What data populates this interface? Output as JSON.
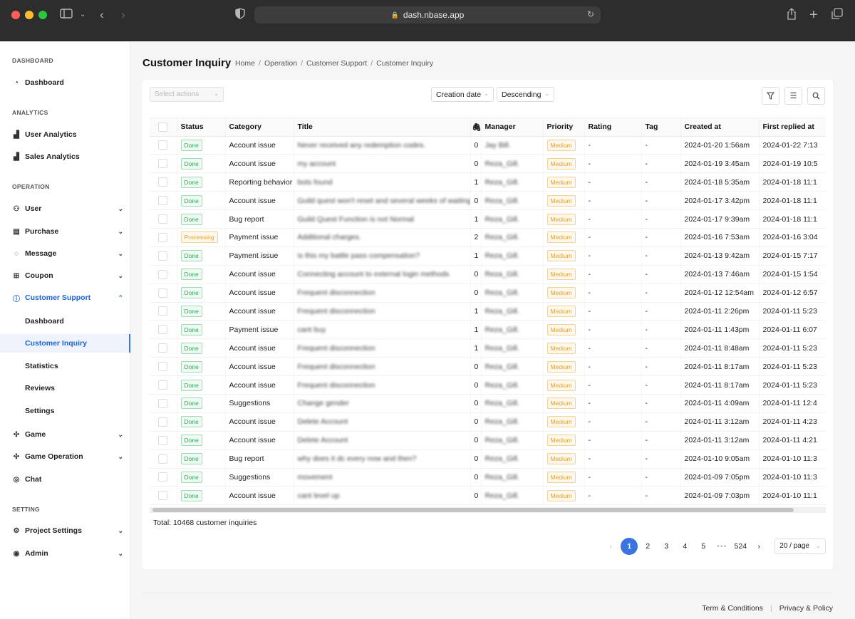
{
  "browser": {
    "url": "dash.nbase.app"
  },
  "sidebar": {
    "sections": [
      {
        "label": "DASHBOARD"
      },
      {
        "label": "ANALYTICS"
      },
      {
        "label": "OPERATION"
      },
      {
        "label": "SETTING"
      }
    ],
    "items": [
      {
        "label": "Dashboard",
        "icon": "dashboard-icon"
      },
      {
        "label": "User Analytics",
        "icon": "bar-chart-icon"
      },
      {
        "label": "Sales Analytics",
        "icon": "bar-chart-icon"
      },
      {
        "label": "User",
        "icon": "user-icon"
      },
      {
        "label": "Purchase",
        "icon": "purchase-icon"
      },
      {
        "label": "Message",
        "icon": "message-icon"
      },
      {
        "label": "Coupon",
        "icon": "gift-icon"
      },
      {
        "label": "Customer Support",
        "icon": "help-circle-icon"
      },
      {
        "label": "Dashboard"
      },
      {
        "label": "Customer Inquiry"
      },
      {
        "label": "Statistics"
      },
      {
        "label": "Reviews"
      },
      {
        "label": "Settings"
      },
      {
        "label": "Game",
        "icon": "game-icon"
      },
      {
        "label": "Game Operation",
        "icon": "game-icon"
      },
      {
        "label": "Chat",
        "icon": "chat-icon"
      },
      {
        "label": "Project Settings",
        "icon": "gear-icon"
      },
      {
        "label": "Admin",
        "icon": "eye-icon"
      }
    ]
  },
  "header": {
    "title": "Customer Inquiry",
    "breadcrumb": [
      "Home",
      "Operation",
      "Customer Support",
      "Customer Inquiry"
    ]
  },
  "toolbar": {
    "select_actions_placeholder": "Select actions",
    "sort_field": "Creation date",
    "sort_order": "Descending"
  },
  "table": {
    "columns": [
      "Status",
      "Category",
      "Title",
      "Manager",
      "Priority",
      "Rating",
      "Tag",
      "Created at",
      "First replied at"
    ],
    "rows": [
      {
        "status": "Done",
        "category": "Account issue",
        "title": "Never received any redemption codes.",
        "count": "0",
        "manager": "Jay Bill.",
        "priority": "Medium",
        "rating": "-",
        "tag": "-",
        "created": "2024-01-20 1:56am",
        "replied": "2024-01-22 7:13"
      },
      {
        "status": "Done",
        "category": "Account issue",
        "title": "my account",
        "count": "0",
        "manager": "Reza_Gill.",
        "priority": "Medium",
        "rating": "-",
        "tag": "-",
        "created": "2024-01-19 3:45am",
        "replied": "2024-01-19 10:5"
      },
      {
        "status": "Done",
        "category": "Reporting behavior",
        "title": "bots found",
        "count": "1",
        "manager": "Reza_Gill.",
        "priority": "Medium",
        "rating": "-",
        "tag": "-",
        "created": "2024-01-18 5:35am",
        "replied": "2024-01-18 11:1"
      },
      {
        "status": "Done",
        "category": "Account issue",
        "title": "Guild quest won't reset and several weeks of waiting",
        "count": "0",
        "manager": "Reza_Gill.",
        "priority": "Medium",
        "rating": "-",
        "tag": "-",
        "created": "2024-01-17 3:42pm",
        "replied": "2024-01-18 11:1"
      },
      {
        "status": "Done",
        "category": "Bug report",
        "title": "Guild Quest Function is not Normal",
        "count": "1",
        "manager": "Reza_Gill.",
        "priority": "Medium",
        "rating": "-",
        "tag": "-",
        "created": "2024-01-17 9:39am",
        "replied": "2024-01-18 11:1"
      },
      {
        "status": "Processing",
        "category": "Payment issue",
        "title": "Additional charges.",
        "count": "2",
        "manager": "Reza_Gill.",
        "priority": "Medium",
        "rating": "-",
        "tag": "-",
        "created": "2024-01-16 7:53am",
        "replied": "2024-01-16 3:04"
      },
      {
        "status": "Done",
        "category": "Payment issue",
        "title": "is this my battle pass compensation?",
        "count": "1",
        "manager": "Reza_Gill.",
        "priority": "Medium",
        "rating": "-",
        "tag": "-",
        "created": "2024-01-13 9:42am",
        "replied": "2024-01-15 7:17"
      },
      {
        "status": "Done",
        "category": "Account issue",
        "title": "Connecting account to external login methods",
        "count": "0",
        "manager": "Reza_Gill.",
        "priority": "Medium",
        "rating": "-",
        "tag": "-",
        "created": "2024-01-13 7:46am",
        "replied": "2024-01-15 1:54"
      },
      {
        "status": "Done",
        "category": "Account issue",
        "title": "Frequent disconnection",
        "count": "0",
        "manager": "Reza_Gill.",
        "priority": "Medium",
        "rating": "-",
        "tag": "-",
        "created": "2024-01-12 12:54am",
        "replied": "2024-01-12 6:57"
      },
      {
        "status": "Done",
        "category": "Account issue",
        "title": "Frequent disconnection",
        "count": "1",
        "manager": "Reza_Gill.",
        "priority": "Medium",
        "rating": "-",
        "tag": "-",
        "created": "2024-01-11 2:26pm",
        "replied": "2024-01-11 5:23"
      },
      {
        "status": "Done",
        "category": "Payment issue",
        "title": "cant buy",
        "count": "1",
        "manager": "Reza_Gill.",
        "priority": "Medium",
        "rating": "-",
        "tag": "-",
        "created": "2024-01-11 1:43pm",
        "replied": "2024-01-11 6:07"
      },
      {
        "status": "Done",
        "category": "Account issue",
        "title": "Frequent disconnection",
        "count": "1",
        "manager": "Reza_Gill.",
        "priority": "Medium",
        "rating": "-",
        "tag": "-",
        "created": "2024-01-11 8:48am",
        "replied": "2024-01-11 5:23"
      },
      {
        "status": "Done",
        "category": "Account issue",
        "title": "Frequent disconnection",
        "count": "0",
        "manager": "Reza_Gill.",
        "priority": "Medium",
        "rating": "-",
        "tag": "-",
        "created": "2024-01-11 8:17am",
        "replied": "2024-01-11 5:23"
      },
      {
        "status": "Done",
        "category": "Account issue",
        "title": "Frequent disconnection",
        "count": "0",
        "manager": "Reza_Gill.",
        "priority": "Medium",
        "rating": "-",
        "tag": "-",
        "created": "2024-01-11 8:17am",
        "replied": "2024-01-11 5:23"
      },
      {
        "status": "Done",
        "category": "Suggestions",
        "title": "Change gender",
        "count": "0",
        "manager": "Reza_Gill.",
        "priority": "Medium",
        "rating": "-",
        "tag": "-",
        "created": "2024-01-11 4:09am",
        "replied": "2024-01-11 12:4"
      },
      {
        "status": "Done",
        "category": "Account issue",
        "title": "Delete Account",
        "count": "0",
        "manager": "Reza_Gill.",
        "priority": "Medium",
        "rating": "-",
        "tag": "-",
        "created": "2024-01-11 3:12am",
        "replied": "2024-01-11 4:23"
      },
      {
        "status": "Done",
        "category": "Account issue",
        "title": "Delete Account",
        "count": "0",
        "manager": "Reza_Gill.",
        "priority": "Medium",
        "rating": "-",
        "tag": "-",
        "created": "2024-01-11 3:12am",
        "replied": "2024-01-11 4:21"
      },
      {
        "status": "Done",
        "category": "Bug report",
        "title": "why does it dc every now and then?",
        "count": "0",
        "manager": "Reza_Gill.",
        "priority": "Medium",
        "rating": "-",
        "tag": "-",
        "created": "2024-01-10 9:05am",
        "replied": "2024-01-10 11:3"
      },
      {
        "status": "Done",
        "category": "Suggestions",
        "title": "movement",
        "count": "0",
        "manager": "Reza_Gill.",
        "priority": "Medium",
        "rating": "-",
        "tag": "-",
        "created": "2024-01-09 7:05pm",
        "replied": "2024-01-10 11:3"
      },
      {
        "status": "Done",
        "category": "Account issue",
        "title": "cant level up",
        "count": "0",
        "manager": "Reza_Gill.",
        "priority": "Medium",
        "rating": "-",
        "tag": "-",
        "created": "2024-01-09 7:03pm",
        "replied": "2024-01-10 11:1"
      }
    ]
  },
  "summary": {
    "total": "Total: 10468 customer inquiries"
  },
  "pagination": {
    "pages": [
      "1",
      "2",
      "3",
      "4",
      "5"
    ],
    "ellipsis": "•••",
    "last": "524",
    "page_size": "20 / page",
    "prev": "‹",
    "next": "›"
  },
  "footer": {
    "terms": "Term & Conditions",
    "privacy": "Privacy & Policy"
  },
  "colors": {
    "accent": "#3b74e0",
    "done": "#27ae60",
    "warning": "#e0a030"
  }
}
